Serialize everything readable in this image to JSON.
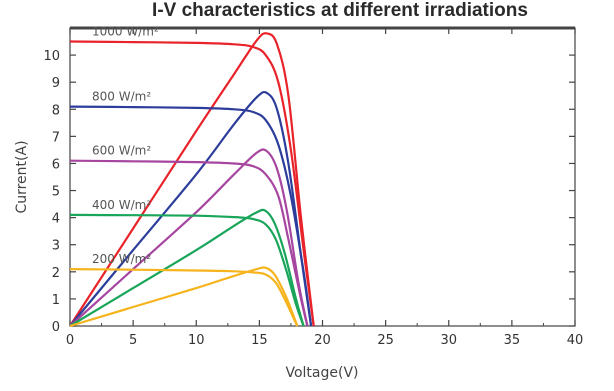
{
  "chart_data": {
    "type": "line",
    "title": "I-V characteristics at different irradiations",
    "xlabel": "Voltage(V)",
    "ylabel": "Current(A)",
    "xlim": [
      0,
      40
    ],
    "ylim": [
      0,
      11
    ],
    "x_ticks": [
      "0",
      "5",
      "10",
      "15",
      "20",
      "25",
      "30",
      "35",
      "40"
    ],
    "y_ticks": [
      "0",
      "1",
      "2",
      "3",
      "4",
      "5",
      "6",
      "7",
      "8",
      "9",
      "10"
    ],
    "grid": false,
    "series": [
      {
        "name": "1000 W/m²",
        "color": "#e8232a",
        "iv_curve": [
          [
            0,
            10.5
          ],
          [
            5,
            10.48
          ],
          [
            10,
            10.45
          ],
          [
            13,
            10.4
          ],
          [
            14.5,
            10.3
          ],
          [
            15.5,
            10.0
          ],
          [
            16.5,
            9.0
          ],
          [
            17.5,
            6.5
          ],
          [
            18.5,
            2.8
          ],
          [
            19.3,
            0
          ]
        ],
        "power_curve": [
          [
            0,
            0
          ],
          [
            5,
            3.6
          ],
          [
            10,
            7.2
          ],
          [
            13,
            9.3
          ],
          [
            14.8,
            10.55
          ],
          [
            15.6,
            10.8
          ],
          [
            16.4,
            10.4
          ],
          [
            17.3,
            8.5
          ],
          [
            18.3,
            4.0
          ],
          [
            19.3,
            0
          ]
        ]
      },
      {
        "name": "800 W/m²",
        "color": "#2d3d9b",
        "iv_curve": [
          [
            0,
            8.1
          ],
          [
            5,
            8.08
          ],
          [
            10,
            8.05
          ],
          [
            13,
            8.0
          ],
          [
            14.5,
            7.9
          ],
          [
            15.5,
            7.6
          ],
          [
            16.5,
            6.7
          ],
          [
            17.5,
            4.8
          ],
          [
            18.5,
            2.0
          ],
          [
            19.1,
            0
          ]
        ],
        "power_curve": [
          [
            0,
            0
          ],
          [
            5,
            2.8
          ],
          [
            10,
            5.6
          ],
          [
            13,
            7.45
          ],
          [
            14.8,
            8.45
          ],
          [
            15.6,
            8.6
          ],
          [
            16.4,
            8.0
          ],
          [
            17.3,
            6.0
          ],
          [
            18.3,
            2.6
          ],
          [
            19.1,
            0
          ]
        ]
      },
      {
        "name": "600 W/m²",
        "color": "#a646a0",
        "iv_curve": [
          [
            0,
            6.1
          ],
          [
            5,
            6.08
          ],
          [
            10,
            6.05
          ],
          [
            13,
            6.0
          ],
          [
            14.5,
            5.9
          ],
          [
            15.5,
            5.6
          ],
          [
            16.5,
            4.8
          ],
          [
            17.3,
            3.2
          ],
          [
            18.2,
            1.2
          ],
          [
            18.8,
            0
          ]
        ],
        "power_curve": [
          [
            0,
            0
          ],
          [
            5,
            2.1
          ],
          [
            10,
            4.2
          ],
          [
            13,
            5.6
          ],
          [
            14.8,
            6.4
          ],
          [
            15.6,
            6.45
          ],
          [
            16.4,
            5.8
          ],
          [
            17.2,
            4.2
          ],
          [
            18.1,
            1.6
          ],
          [
            18.8,
            0
          ]
        ]
      },
      {
        "name": "400 W/m²",
        "color": "#19a55a",
        "iv_curve": [
          [
            0,
            4.1
          ],
          [
            5,
            4.09
          ],
          [
            10,
            4.07
          ],
          [
            13,
            4.02
          ],
          [
            14.5,
            3.95
          ],
          [
            15.5,
            3.75
          ],
          [
            16.3,
            3.2
          ],
          [
            17.1,
            2.1
          ],
          [
            17.9,
            0.8
          ],
          [
            18.5,
            0
          ]
        ],
        "power_curve": [
          [
            0,
            0
          ],
          [
            5,
            1.4
          ],
          [
            10,
            2.8
          ],
          [
            13,
            3.7
          ],
          [
            14.8,
            4.2
          ],
          [
            15.5,
            4.25
          ],
          [
            16.2,
            3.8
          ],
          [
            17.0,
            2.7
          ],
          [
            17.9,
            1.0
          ],
          [
            18.5,
            0
          ]
        ]
      },
      {
        "name": "200 W/m²",
        "color": "#f5b31c",
        "iv_curve": [
          [
            0,
            2.1
          ],
          [
            5,
            2.08
          ],
          [
            10,
            2.05
          ],
          [
            13,
            2.02
          ],
          [
            14.5,
            1.98
          ],
          [
            15.5,
            1.9
          ],
          [
            16.3,
            1.6
          ],
          [
            17.0,
            1.0
          ],
          [
            17.6,
            0.4
          ],
          [
            18.0,
            0
          ]
        ],
        "power_curve": [
          [
            0,
            0
          ],
          [
            5,
            0.7
          ],
          [
            10,
            1.4
          ],
          [
            13,
            1.85
          ],
          [
            14.8,
            2.1
          ],
          [
            15.5,
            2.15
          ],
          [
            16.2,
            1.9
          ],
          [
            17.0,
            1.2
          ],
          [
            17.6,
            0.5
          ],
          [
            18.0,
            0
          ]
        ]
      }
    ]
  }
}
